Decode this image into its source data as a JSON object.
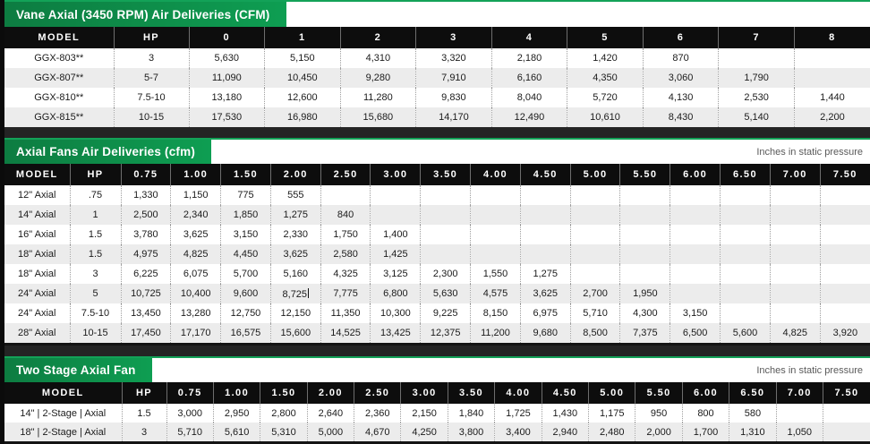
{
  "colors": {
    "accent_green_dark": "#0d7c41",
    "accent_green_bright": "#0e9e52",
    "header_black": "#0d0d0d",
    "row_stripe": "#ececec",
    "divider_bar": "#242424"
  },
  "tables": [
    {
      "title": "Vane Axial (3450 RPM) Air Deliveries (CFM)",
      "note": "",
      "columns": [
        "MODEL",
        "HP",
        "0",
        "1",
        "2",
        "3",
        "4",
        "5",
        "6",
        "7",
        "8"
      ],
      "rows": [
        [
          "GGX-803**",
          "3",
          "5,630",
          "5,150",
          "4,310",
          "3,320",
          "2,180",
          "1,420",
          "870",
          "",
          ""
        ],
        [
          "GGX-807**",
          "5-7",
          "11,090",
          "10,450",
          "9,280",
          "7,910",
          "6,160",
          "4,350",
          "3,060",
          "1,790",
          ""
        ],
        [
          "GGX-810**",
          "7.5-10",
          "13,180",
          "12,600",
          "11,280",
          "9,830",
          "8,040",
          "5,720",
          "4,130",
          "2,530",
          "1,440"
        ],
        [
          "GGX-815**",
          "10-15",
          "17,530",
          "16,980",
          "15,680",
          "14,170",
          "12,490",
          "10,610",
          "8,430",
          "5,140",
          "2,200"
        ]
      ]
    },
    {
      "title": "Axial Fans Air Deliveries (cfm)",
      "note": "Inches in static pressure",
      "columns": [
        "MODEL",
        "HP",
        "0.75",
        "1.00",
        "1.50",
        "2.00",
        "2.50",
        "3.00",
        "3.50",
        "4.00",
        "4.50",
        "5.00",
        "5.50",
        "6.00",
        "6.50",
        "7.00",
        "7.50"
      ],
      "rows": [
        [
          "12\" Axial",
          ".75",
          "1,330",
          "1,150",
          "775",
          "555",
          "",
          "",
          "",
          "",
          "",
          "",
          "",
          "",
          "",
          "",
          ""
        ],
        [
          "14\" Axial",
          "1",
          "2,500",
          "2,340",
          "1,850",
          "1,275",
          "840",
          "",
          "",
          "",
          "",
          "",
          "",
          "",
          "",
          "",
          ""
        ],
        [
          "16\" Axial",
          "1.5",
          "3,780",
          "3,625",
          "3,150",
          "2,330",
          "1,750",
          "1,400",
          "",
          "",
          "",
          "",
          "",
          "",
          "",
          "",
          ""
        ],
        [
          "18\" Axial",
          "1.5",
          "4,975",
          "4,825",
          "4,450",
          "3,625",
          "2,580",
          "1,425",
          "",
          "",
          "",
          "",
          "",
          "",
          "",
          "",
          ""
        ],
        [
          "18\" Axial",
          "3",
          "6,225",
          "6,075",
          "5,700",
          "5,160",
          "4,325",
          "3,125",
          "2,300",
          "1,550",
          "1,275",
          "",
          "",
          "",
          "",
          "",
          ""
        ],
        [
          "24\" Axial",
          "5",
          "10,725",
          "10,400",
          "9,600",
          "8,725",
          "7,775",
          "6,800",
          "5,630",
          "4,575",
          "3,625",
          "2,700",
          "1,950",
          "",
          "",
          "",
          ""
        ],
        [
          "24\" Axial",
          "7.5-10",
          "13,450",
          "13,280",
          "12,750",
          "12,150",
          "11,350",
          "10,300",
          "9,225",
          "8,150",
          "6,975",
          "5,710",
          "4,300",
          "3,150",
          "",
          "",
          ""
        ],
        [
          "28\" Axial",
          "10-15",
          "17,450",
          "17,170",
          "16,575",
          "15,600",
          "14,525",
          "13,425",
          "12,375",
          "11,200",
          "9,680",
          "8,500",
          "7,375",
          "6,500",
          "5,600",
          "4,825",
          "3,920"
        ]
      ],
      "caret": {
        "row": 5,
        "col": 5
      }
    },
    {
      "title": "Two Stage Axial Fan",
      "note": "Inches in static pressure",
      "columns": [
        "MODEL",
        "HP",
        "0.75",
        "1.00",
        "1.50",
        "2.00",
        "2.50",
        "3.00",
        "3.50",
        "4.00",
        "4.50",
        "5.00",
        "5.50",
        "6.00",
        "6.50",
        "7.00",
        "7.50"
      ],
      "rows": [
        [
          "14\" | 2-Stage | Axial",
          "1.5",
          "3,000",
          "2,950",
          "2,800",
          "2,640",
          "2,360",
          "2,150",
          "1,840",
          "1,725",
          "1,430",
          "1,175",
          "950",
          "800",
          "580",
          "",
          ""
        ],
        [
          "18\" | 2-Stage | Axial",
          "3",
          "5,710",
          "5,610",
          "5,310",
          "5,000",
          "4,670",
          "4,250",
          "3,800",
          "3,400",
          "2,940",
          "2,480",
          "2,000",
          "1,700",
          "1,310",
          "1,050",
          ""
        ]
      ]
    }
  ]
}
